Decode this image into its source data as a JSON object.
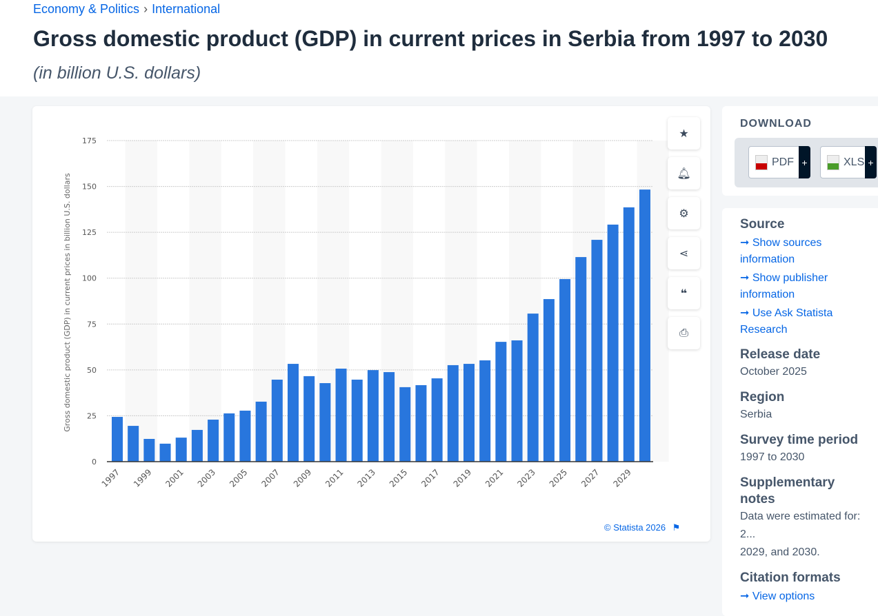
{
  "breadcrumb": [
    "Economy & Politics",
    "International"
  ],
  "title": "Gross domestic product (GDP) in current prices in Serbia from 1997 to 2030",
  "subtitle": "(in billion U.S. dollars)",
  "credit": "© Statista 2026",
  "tools": [
    "star-icon",
    "bell-icon",
    "gear-icon",
    "share-icon",
    "quote-icon",
    "print-icon"
  ],
  "download": {
    "heading": "DOWNLOAD",
    "pdf": "PDF",
    "xls": "XLS",
    "plus": "+"
  },
  "meta": {
    "source_heading": "Source",
    "links": [
      "Show sources information",
      "Show publisher information",
      "Use Ask Statista Research"
    ],
    "release_heading": "Release date",
    "release": "October 2025",
    "region_heading": "Region",
    "region": "Serbia",
    "period_heading": "Survey time period",
    "period": "1997 to 2030",
    "notes_heading": "Supplementary notes",
    "notes1": "Data were estimated for: 2...",
    "notes2": "2029, and 2030.",
    "citation_heading": "Citation formats",
    "citation_link": "View options"
  },
  "chart_data": {
    "type": "bar",
    "ylabel": "Gross domestic product (GDP) in current prices in billion U.S. dollars",
    "ylim": [
      0,
      175
    ],
    "yticks": [
      0,
      25,
      50,
      75,
      100,
      125,
      150,
      175
    ],
    "grid": true,
    "bar_color": "#2876dd",
    "categories": [
      "1997",
      "1998",
      "1999",
      "2000",
      "2001",
      "2002",
      "2003",
      "2004",
      "2005",
      "2006",
      "2007",
      "2008",
      "2009",
      "2010",
      "2011",
      "2012",
      "2013",
      "2014",
      "2015",
      "2016",
      "2017",
      "2018",
      "2019",
      "2020",
      "2021",
      "2022",
      "2023",
      "2024",
      "2025",
      "2026",
      "2027",
      "2028",
      "2029",
      "2030"
    ],
    "xtick_labels": [
      "1997",
      "1999",
      "2001",
      "2003",
      "2005",
      "2007",
      "2009",
      "2011",
      "2013",
      "2015",
      "2017",
      "2019",
      "2021",
      "2023",
      "2025",
      "2027",
      "2029"
    ],
    "values": [
      24.4,
      19.5,
      12.4,
      9.8,
      13.1,
      17.3,
      22.9,
      26.3,
      27.8,
      32.7,
      44.7,
      53.3,
      46.6,
      42.8,
      50.7,
      44.7,
      49.9,
      48.8,
      40.6,
      41.7,
      45.4,
      52.6,
      53.3,
      55.2,
      65.3,
      66.1,
      80.7,
      88.6,
      99.5,
      111.5,
      120.9,
      129.2,
      138.6,
      148.3
    ]
  }
}
